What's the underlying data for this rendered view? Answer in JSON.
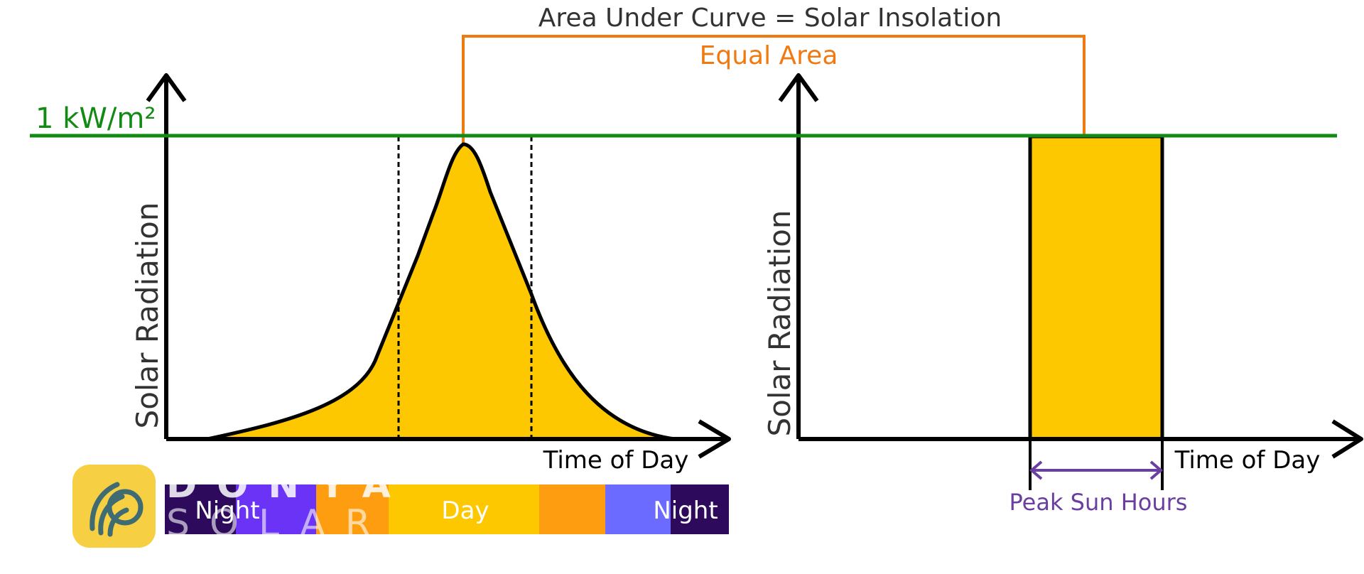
{
  "title": "Area Under Curve = Solar Insolation",
  "equal_area_label": "Equal Area",
  "reference_line_label": "1 kW/m²",
  "left_chart": {
    "ylabel": "Solar Radiation",
    "xlabel": "Time of Day",
    "curve_peak_fraction": 0.97,
    "day_bands": [
      "Night",
      "Day",
      "Night"
    ]
  },
  "right_chart": {
    "ylabel": "Solar Radiation",
    "xlabel": "Time of Day",
    "bar_height_fraction": 1.0,
    "bracket_label": "Peak Sun Hours"
  },
  "logo": {
    "line1": "DONYA",
    "line2": "SOLAR"
  },
  "colors": {
    "fill": "#fdc800",
    "reference_line": "#138a13",
    "equal_area": "#f07a12",
    "bracket": "#6b3fa0",
    "axis": "#000000",
    "title": "#333333",
    "night_dark": "#2d0a5c",
    "night_purple": "#6a33f5",
    "night_blue": "#6b6bff",
    "dawn_orange": "#ff9d10",
    "logo_bg": "#f6cf42",
    "logo_mark": "#3f6b73"
  },
  "icons": [
    "sun-leaf-logo-icon"
  ]
}
